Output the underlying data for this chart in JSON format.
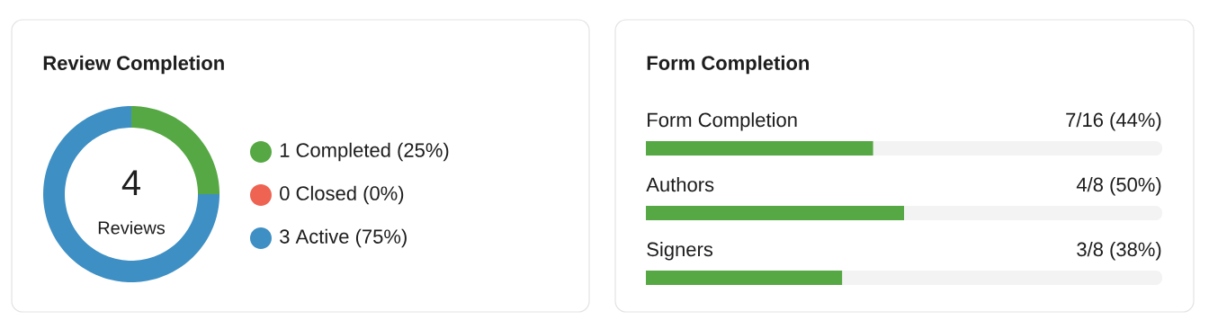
{
  "chart_data": [
    {
      "type": "donut",
      "title": "Review Completion",
      "categories": [
        "1 Completed (25%)",
        "0 Closed (0%)",
        "3 Active (75%)"
      ],
      "values": [
        1,
        0,
        3
      ],
      "colors": [
        "#55a843",
        "#ee6352",
        "#3e8fc4"
      ],
      "legend": "right",
      "annotations": [
        "4",
        "Reviews"
      ]
    },
    {
      "type": "bar",
      "orientation": "horizontal",
      "title": "Form Completion",
      "categories": [
        "Form Completion",
        "Authors",
        "Signers"
      ],
      "values": [
        44,
        50,
        38
      ],
      "color": "#55a843",
      "xlim": [
        0,
        100
      ],
      "value_labels": [
        "7/16 (44%)",
        "4/8 (50%)",
        "3/8 (38%)"
      ]
    }
  ]
}
